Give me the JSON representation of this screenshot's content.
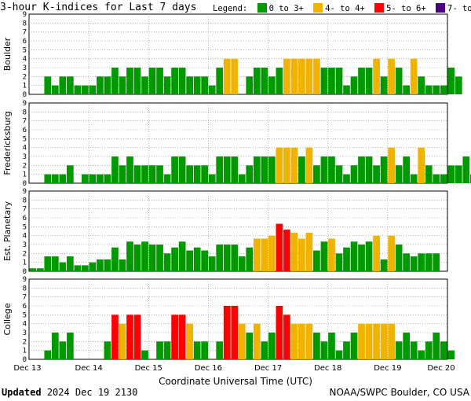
{
  "title": "3-hour K-indices for Last 7 days",
  "legend": {
    "label": "Legend:",
    "items": [
      {
        "label": "0 to 3+",
        "color": "#009900"
      },
      {
        "label": "4- to 4+",
        "color": "#f0b400"
      },
      {
        "label": "5- to 6+",
        "color": "#ff0000"
      },
      {
        "label": "7- to 9",
        "color": "#4b0082"
      }
    ]
  },
  "footer": {
    "updated_label": "Updated",
    "updated_time": "2024 Dec 19 2130",
    "credit": "NOAA/SWPC Boulder, CO USA"
  },
  "chart_data": {
    "type": "bar",
    "xlabel": "Coordinate Universal Time (UTC)",
    "x_ticks": [
      "Dec 13",
      "Dec 14",
      "Dec 15",
      "Dec 16",
      "Dec 17",
      "Dec 18",
      "Dec 19",
      "Dec 20"
    ],
    "ylim": [
      0,
      9
    ],
    "y_ticks": [
      0,
      1,
      2,
      3,
      4,
      5,
      6,
      7,
      8,
      9
    ],
    "color_thresholds": {
      "green_below": 3.67,
      "yellow_below": 4.67,
      "red_below": 6.67
    },
    "grid": true,
    "series": [
      {
        "name": "Boulder",
        "values": [
          0,
          0,
          2,
          1,
          2,
          2,
          1,
          1,
          1,
          2,
          2,
          3,
          2,
          3,
          3,
          2,
          3,
          3,
          2,
          3,
          3,
          2,
          2,
          2,
          1,
          3,
          4,
          4,
          0,
          2,
          3,
          3,
          2,
          3,
          4,
          4,
          4,
          4,
          4,
          3,
          3,
          3,
          1,
          2,
          3,
          3,
          4,
          2,
          4,
          3,
          1,
          4,
          2,
          1,
          1,
          1,
          3,
          2,
          0
        ]
      },
      {
        "name": "Fredericksburg",
        "values": [
          0,
          0,
          1,
          1,
          1,
          2,
          0,
          1,
          1,
          1,
          1,
          3,
          2,
          3,
          2,
          2,
          2,
          2,
          1,
          3,
          3,
          2,
          2,
          2,
          1,
          3,
          3,
          3,
          1,
          2,
          3,
          3,
          3,
          4,
          4,
          4,
          3,
          4,
          2,
          3,
          3,
          2,
          1,
          2,
          3,
          3,
          2,
          3,
          4,
          2,
          3,
          1,
          4,
          2,
          1,
          1,
          2,
          2,
          3,
          1,
          0
        ]
      },
      {
        "name": "Est. Planetary",
        "values": [
          0.33,
          0.33,
          1.67,
          1.67,
          1,
          1.67,
          0.67,
          0.67,
          1,
          1.33,
          1.33,
          2.67,
          1.33,
          3.33,
          3,
          3.33,
          3,
          3,
          2,
          2.67,
          3.33,
          2.33,
          2.67,
          2.33,
          1.67,
          3,
          3,
          3,
          1.67,
          2.67,
          3.67,
          3.67,
          4,
          5.33,
          4.67,
          4.33,
          3.67,
          4.33,
          2.33,
          3.33,
          3.67,
          2,
          2.67,
          3.33,
          3,
          3.33,
          4,
          1.33,
          4,
          3,
          2,
          1.67,
          2,
          2,
          2,
          0
        ]
      },
      {
        "name": "College",
        "values": [
          0,
          0,
          1,
          3,
          2,
          3,
          0,
          0,
          0,
          0,
          2,
          5,
          4,
          5,
          5,
          1,
          0,
          2,
          2,
          5,
          5,
          4,
          2,
          2,
          0,
          2,
          6,
          6,
          4,
          3,
          4,
          2,
          3,
          6,
          5,
          4,
          4,
          4,
          3,
          2,
          3,
          1,
          2,
          3,
          4,
          4,
          4,
          4,
          4,
          2,
          3,
          2,
          1,
          2,
          3,
          2,
          1,
          0
        ]
      }
    ]
  }
}
